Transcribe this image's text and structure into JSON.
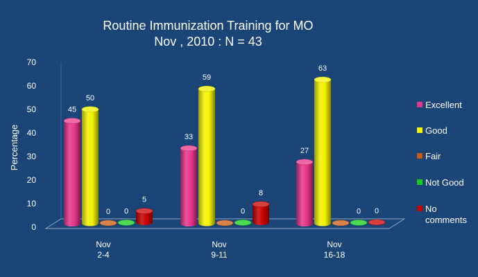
{
  "colors": {
    "background": "#1b4477",
    "Excellent": "#e6358a",
    "Good": "#f2f200",
    "Fair": "#cc5a12",
    "Not Good": "#14cc1a",
    "No comments": "#c80000"
  },
  "chart_data": {
    "type": "bar",
    "title": "Routine Immunization Training for MO",
    "subtitle": "Nov , 2010 : N = 43",
    "xlabel": "",
    "ylabel": "Percentage",
    "ylim": [
      0,
      70
    ],
    "yticks": [
      0,
      10,
      20,
      30,
      40,
      50,
      60,
      70
    ],
    "grid": false,
    "legend_position": "right",
    "categories": [
      {
        "line1": "Nov",
        "line2": "2-4"
      },
      {
        "line1": "Nov",
        "line2": "9-11"
      },
      {
        "line1": "Nov",
        "line2": "16-18"
      }
    ],
    "series": [
      {
        "name": "Excellent",
        "legend_line1": "Excellent",
        "legend_line2": "",
        "values": [
          45,
          33,
          27
        ]
      },
      {
        "name": "Good",
        "legend_line1": "Good",
        "legend_line2": "",
        "values": [
          50,
          59,
          63
        ]
      },
      {
        "name": "Fair",
        "legend_line1": "Fair",
        "legend_line2": "",
        "values": [
          0,
          0,
          0
        ],
        "labels": [
          "0",
          "",
          ""
        ]
      },
      {
        "name": "Not Good",
        "legend_line1": "Not Good",
        "legend_line2": "",
        "values": [
          0,
          0,
          0
        ],
        "labels": [
          "0",
          "0",
          "0"
        ]
      },
      {
        "name": "No comments",
        "legend_line1": "No",
        "legend_line2": "comments",
        "values": [
          5,
          8,
          0
        ],
        "labels": [
          "5",
          "8",
          "0"
        ]
      }
    ]
  }
}
